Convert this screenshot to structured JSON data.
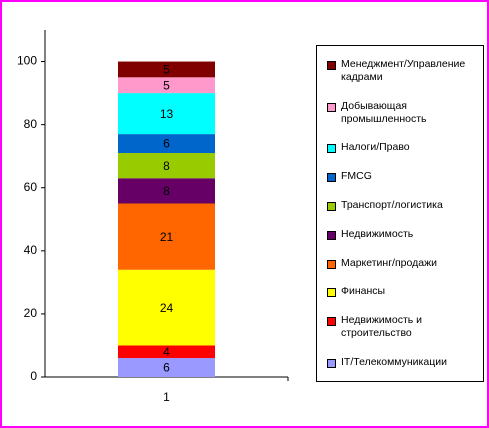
{
  "chart_data": {
    "type": "stacked_bar",
    "categories": [
      "1"
    ],
    "series": [
      {
        "name": "IT/Телекоммуникации",
        "color": "#9999ff",
        "values": [
          6
        ]
      },
      {
        "name": "Недвижимость и строительство",
        "color": "#ff0000",
        "values": [
          4
        ]
      },
      {
        "name": "Финансы",
        "color": "#ffff00",
        "values": [
          24
        ]
      },
      {
        "name": "Маркетинг/продажи",
        "color": "#ff6600",
        "values": [
          21
        ]
      },
      {
        "name": "Недвижимость",
        "color": "#660066",
        "values": [
          8
        ]
      },
      {
        "name": "Транспорт/логистика",
        "color": "#99cc00",
        "values": [
          8
        ]
      },
      {
        "name": "FMCG",
        "color": "#0066cc",
        "values": [
          6
        ]
      },
      {
        "name": "Налоги/Право",
        "color": "#00ffff",
        "values": [
          13
        ]
      },
      {
        "name": "Добывающая промышленность",
        "color": "#ff99cc",
        "values": [
          5
        ]
      },
      {
        "name": "Менеджмент/Управление кадрами",
        "color": "#800000",
        "values": [
          5
        ]
      }
    ],
    "ylim": [
      0,
      110
    ],
    "yticks": [
      0,
      20,
      40,
      60,
      80,
      100
    ],
    "legend": "right"
  }
}
